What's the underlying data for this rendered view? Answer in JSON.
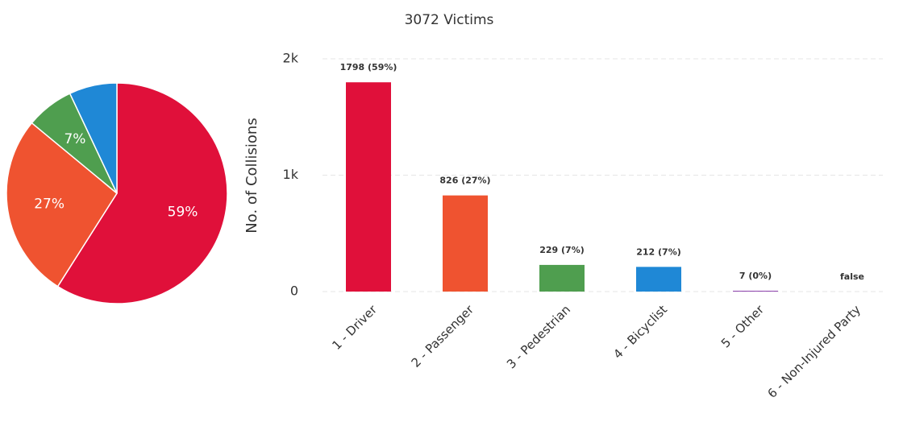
{
  "chart_data": [
    {
      "type": "pie",
      "values": [
        59,
        27,
        7,
        7
      ],
      "value_labels": [
        "59%",
        "27%",
        "7%",
        null
      ],
      "colors": [
        "#e0103a",
        "#ef5330",
        "#4f9e4f",
        "#1f88d6"
      ]
    },
    {
      "type": "bar",
      "title": "3072 Victims",
      "y_label": "No. of Collisions",
      "categories": [
        "1 - Driver",
        "2 - Passenger",
        "3 - Pedestrian",
        "4 - Bicyclist",
        "5 - Other",
        "6 - Non-Injured Party"
      ],
      "values": [
        1798,
        826,
        229,
        212,
        7,
        null
      ],
      "value_labels": [
        "1798 (59%)",
        "826 (27%)",
        "229 (7%)",
        "212 (7%)",
        "7 (0%)",
        "false"
      ],
      "colors": [
        "#e0103a",
        "#ef5330",
        "#4f9e4f",
        "#1f88d6",
        "#8e44ad",
        "#999999"
      ],
      "ylim": [
        0,
        2000
      ],
      "yticks": [
        0,
        {
          "value": 1000,
          "label": "1k"
        },
        {
          "value": 2000,
          "label": "2k"
        }
      ],
      "grid": true
    }
  ]
}
